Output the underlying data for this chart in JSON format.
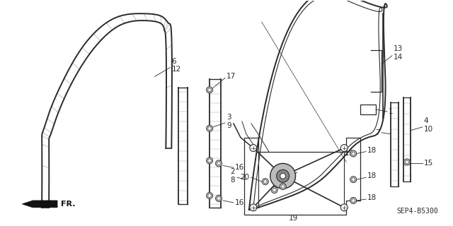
{
  "diagram_code": "SEP4-B5300",
  "bg_color": "#ffffff",
  "line_color": "#2a2a2a",
  "hatch_color": "#555555"
}
